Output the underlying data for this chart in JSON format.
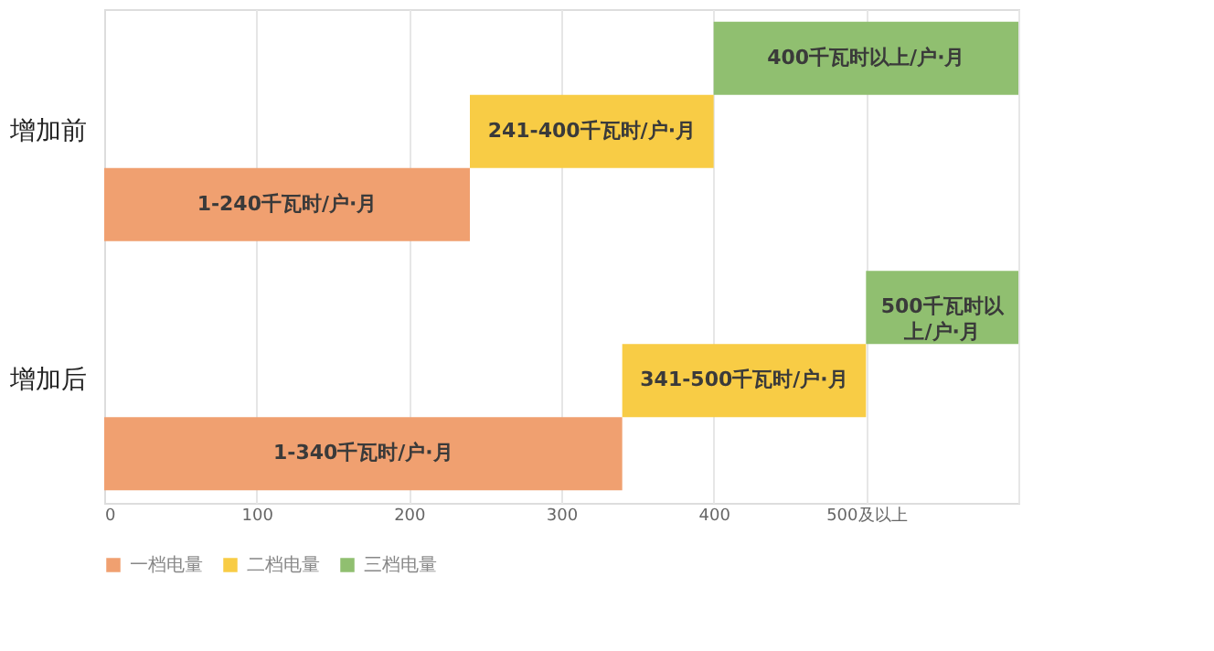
{
  "chart_data": {
    "type": "bar",
    "orientation": "horizontal",
    "stacked": true,
    "categories": [
      "增加前",
      "增加后"
    ],
    "series": [
      {
        "name": "一档电量",
        "color": "#f0a070",
        "values": [
          240,
          340
        ]
      },
      {
        "name": "二档电量",
        "color": "#f8cc45",
        "values": [
          160,
          160
        ]
      },
      {
        "name": "三档电量",
        "color": "#90bf70",
        "values": [
          200,
          100
        ]
      }
    ],
    "annotations": [
      "1-240千瓦时/户·月",
      "241-400千瓦时/户·月",
      "400千瓦时以上/户·月",
      "1-340千瓦时/户·月",
      "341-500千瓦时/户·月",
      "500千瓦时以上/户·月"
    ],
    "xlim": [
      0,
      600
    ],
    "xticks": [
      0,
      100,
      200,
      300,
      400,
      {
        "value": 500,
        "label": "500及以上"
      },
      {
        "value": 600,
        "label": null
      }
    ],
    "grid": "x",
    "legend": "bottom"
  }
}
